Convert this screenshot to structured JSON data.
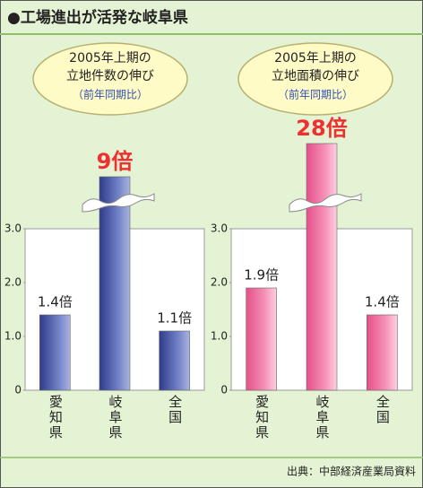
{
  "header": {
    "title": "●工場進出が活発な岐阜県"
  },
  "source": "出典：中部経済産業局資料",
  "chart_data": [
    {
      "type": "bar",
      "title": [
        "2005年上期の",
        "立地件数の伸び"
      ],
      "subtitle": "（前年同期比）",
      "categories": [
        "愛知県",
        "岐阜県",
        "全国"
      ],
      "values": [
        1.4,
        9,
        1.1
      ],
      "value_labels": [
        "1.4倍",
        "9倍",
        "1.1倍"
      ],
      "color": "blue",
      "ylim": [
        0,
        3
      ],
      "yticks": [
        0,
        {
          "value": 1,
          "label": "1.0"
        },
        {
          "value": 2,
          "label": "2.0"
        },
        {
          "value": 3,
          "label": "3.0"
        }
      ],
      "axis_break": true
    },
    {
      "type": "bar",
      "title": [
        "2005年上期の",
        "立地面積の伸び"
      ],
      "subtitle": "（前年同期比）",
      "categories": [
        "愛知県",
        "岐阜県",
        "全国"
      ],
      "values": [
        1.9,
        28,
        1.4
      ],
      "value_labels": [
        "1.9倍",
        "28倍",
        "1.4倍"
      ],
      "color": "pink",
      "ylim": [
        0,
        3
      ],
      "yticks": [
        0,
        {
          "value": 1,
          "label": "1.0"
        },
        {
          "value": 2,
          "label": "2.0"
        },
        {
          "value": 3,
          "label": "3.0"
        }
      ],
      "axis_break": true
    }
  ]
}
